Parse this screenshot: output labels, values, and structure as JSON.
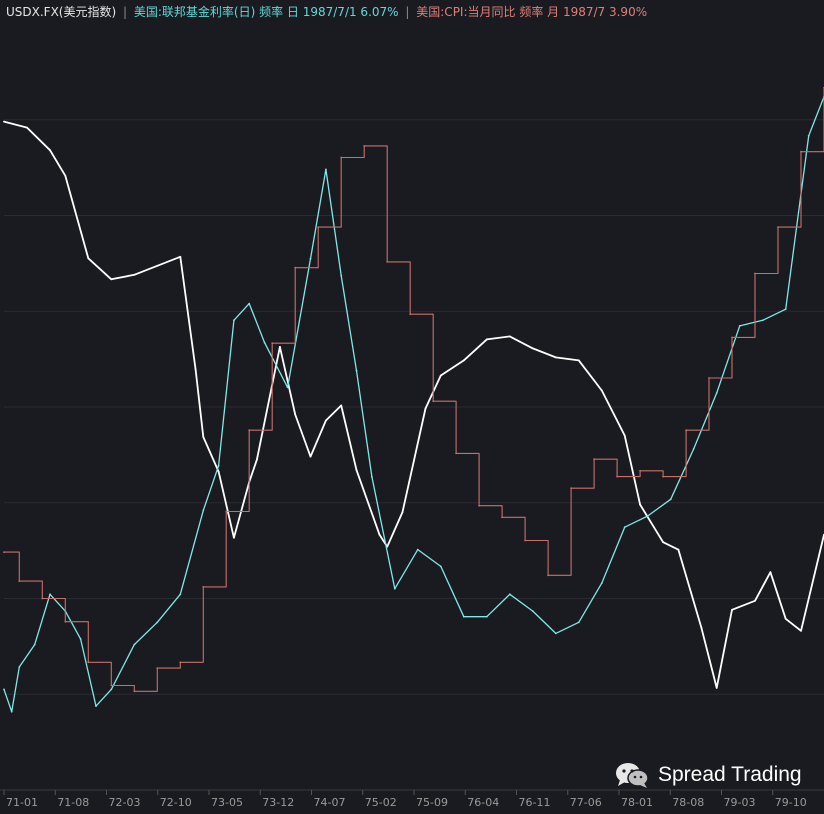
{
  "legend": {
    "usdx": "USDX.FX(美元指数)",
    "sep": "|",
    "fed": "美国:联邦基金利率(日) 频率 日 1987/7/1 6.07%",
    "cpi": "美国:CPI:当月同比 频率 月 1987/7 3.90%"
  },
  "watermark": {
    "text": "Spread Trading",
    "icon": "wechat-icon"
  },
  "colors": {
    "background": "#1a1b20",
    "usdx": "#ffffff",
    "fed": "#7fe8e8",
    "cpi": "#c96f6a",
    "grid": "#2a2b31"
  },
  "chart_data": {
    "type": "line",
    "title": "",
    "xlabel": "",
    "ylabel": "",
    "grid": true,
    "legend_position": "top-left",
    "x_ticks": [
      "71-01",
      "71-08",
      "72-03",
      "72-10",
      "73-05",
      "73-12",
      "74-07",
      "75-02",
      "75-09",
      "76-04",
      "76-11",
      "77-06",
      "78-01",
      "78-08",
      "79-03",
      "79-10"
    ],
    "x_range": [
      "1971-01",
      "1979-12"
    ],
    "series": [
      {
        "name": "USDX.FX(美元指数)",
        "values": [
          {
            "x": "1971-01",
            "y": 120.5
          },
          {
            "x": "1971-04",
            "y": 120.1
          },
          {
            "x": "1971-07",
            "y": 118.6
          },
          {
            "x": "1971-09",
            "y": 116.9
          },
          {
            "x": "1971-12",
            "y": 111.4
          },
          {
            "x": "1972-03",
            "y": 110.0
          },
          {
            "x": "1972-06",
            "y": 110.3
          },
          {
            "x": "1972-09",
            "y": 110.9
          },
          {
            "x": "1972-12",
            "y": 111.5
          },
          {
            "x": "1973-02",
            "y": 104.0
          },
          {
            "x": "1973-03",
            "y": 99.5
          },
          {
            "x": "1973-05",
            "y": 97.2
          },
          {
            "x": "1973-07",
            "y": 92.8
          },
          {
            "x": "1973-09",
            "y": 96.5
          },
          {
            "x": "1973-10",
            "y": 98.0
          },
          {
            "x": "1974-01",
            "y": 105.5
          },
          {
            "x": "1974-03",
            "y": 101.0
          },
          {
            "x": "1974-05",
            "y": 98.2
          },
          {
            "x": "1974-07",
            "y": 100.6
          },
          {
            "x": "1974-09",
            "y": 101.6
          },
          {
            "x": "1974-11",
            "y": 97.3
          },
          {
            "x": "1975-02",
            "y": 93.0
          },
          {
            "x": "1975-03",
            "y": 92.2
          },
          {
            "x": "1975-05",
            "y": 94.5
          },
          {
            "x": "1975-08",
            "y": 101.4
          },
          {
            "x": "1975-10",
            "y": 103.6
          },
          {
            "x": "1976-01",
            "y": 104.6
          },
          {
            "x": "1976-04",
            "y": 106.0
          },
          {
            "x": "1976-07",
            "y": 106.2
          },
          {
            "x": "1976-10",
            "y": 105.4
          },
          {
            "x": "1977-01",
            "y": 104.8
          },
          {
            "x": "1977-04",
            "y": 104.6
          },
          {
            "x": "1977-07",
            "y": 102.6
          },
          {
            "x": "1977-10",
            "y": 99.6
          },
          {
            "x": "1977-12",
            "y": 95.0
          },
          {
            "x": "1978-03",
            "y": 92.5
          },
          {
            "x": "1978-05",
            "y": 92.0
          },
          {
            "x": "1978-08",
            "y": 86.8
          },
          {
            "x": "1978-10",
            "y": 82.8
          },
          {
            "x": "1978-12",
            "y": 88.0
          },
          {
            "x": "1979-03",
            "y": 88.6
          },
          {
            "x": "1979-05",
            "y": 90.5
          },
          {
            "x": "1979-07",
            "y": 87.4
          },
          {
            "x": "1979-09",
            "y": 86.6
          },
          {
            "x": "1979-12",
            "y": 93.0
          }
        ]
      },
      {
        "name": "美国:联邦基金利率(日)",
        "values": [
          {
            "x": "1971-01",
            "y": 3.6
          },
          {
            "x": "1971-02",
            "y": 3.2
          },
          {
            "x": "1971-03",
            "y": 4.0
          },
          {
            "x": "1971-05",
            "y": 4.4
          },
          {
            "x": "1971-07",
            "y": 5.3
          },
          {
            "x": "1971-09",
            "y": 5.0
          },
          {
            "x": "1971-11",
            "y": 4.5
          },
          {
            "x": "1972-01",
            "y": 3.3
          },
          {
            "x": "1972-03",
            "y": 3.6
          },
          {
            "x": "1972-06",
            "y": 4.4
          },
          {
            "x": "1972-09",
            "y": 4.8
          },
          {
            "x": "1972-12",
            "y": 5.3
          },
          {
            "x": "1973-03",
            "y": 6.8
          },
          {
            "x": "1973-05",
            "y": 7.6
          },
          {
            "x": "1973-07",
            "y": 10.2
          },
          {
            "x": "1973-09",
            "y": 10.5
          },
          {
            "x": "1973-11",
            "y": 9.8
          },
          {
            "x": "1974-02",
            "y": 9.0
          },
          {
            "x": "1974-05",
            "y": 11.3
          },
          {
            "x": "1974-07",
            "y": 12.9
          },
          {
            "x": "1974-09",
            "y": 11.0
          },
          {
            "x": "1974-11",
            "y": 9.3
          },
          {
            "x": "1975-01",
            "y": 7.4
          },
          {
            "x": "1975-04",
            "y": 5.4
          },
          {
            "x": "1975-07",
            "y": 6.1
          },
          {
            "x": "1975-10",
            "y": 5.8
          },
          {
            "x": "1976-01",
            "y": 4.9
          },
          {
            "x": "1976-04",
            "y": 4.9
          },
          {
            "x": "1976-07",
            "y": 5.3
          },
          {
            "x": "1976-10",
            "y": 5.0
          },
          {
            "x": "1977-01",
            "y": 4.6
          },
          {
            "x": "1977-04",
            "y": 4.8
          },
          {
            "x": "1977-07",
            "y": 5.5
          },
          {
            "x": "1977-10",
            "y": 6.5
          },
          {
            "x": "1978-01",
            "y": 6.7
          },
          {
            "x": "1978-04",
            "y": 7.0
          },
          {
            "x": "1978-07",
            "y": 7.9
          },
          {
            "x": "1978-10",
            "y": 8.9
          },
          {
            "x": "1979-01",
            "y": 10.1
          },
          {
            "x": "1979-04",
            "y": 10.2
          },
          {
            "x": "1979-07",
            "y": 10.4
          },
          {
            "x": "1979-10",
            "y": 13.5
          },
          {
            "x": "1979-12",
            "y": 14.2
          }
        ]
      },
      {
        "name": "美国:CPI:当月同比",
        "values": [
          {
            "x": "1971-01",
            "y": 5.3
          },
          {
            "x": "1971-03",
            "y": 4.8
          },
          {
            "x": "1971-06",
            "y": 4.5
          },
          {
            "x": "1971-09",
            "y": 4.1
          },
          {
            "x": "1971-12",
            "y": 3.4
          },
          {
            "x": "1972-03",
            "y": 3.0
          },
          {
            "x": "1972-06",
            "y": 2.9
          },
          {
            "x": "1972-09",
            "y": 3.3
          },
          {
            "x": "1972-12",
            "y": 3.4
          },
          {
            "x": "1973-03",
            "y": 4.7
          },
          {
            "x": "1973-06",
            "y": 6.0
          },
          {
            "x": "1973-09",
            "y": 7.4
          },
          {
            "x": "1973-12",
            "y": 8.9
          },
          {
            "x": "1974-03",
            "y": 10.2
          },
          {
            "x": "1974-06",
            "y": 10.9
          },
          {
            "x": "1974-09",
            "y": 12.1
          },
          {
            "x": "1974-12",
            "y": 12.3
          },
          {
            "x": "1975-03",
            "y": 10.3
          },
          {
            "x": "1975-06",
            "y": 9.4
          },
          {
            "x": "1975-09",
            "y": 7.9
          },
          {
            "x": "1975-12",
            "y": 7.0
          },
          {
            "x": "1976-03",
            "y": 6.1
          },
          {
            "x": "1976-06",
            "y": 5.9
          },
          {
            "x": "1976-09",
            "y": 5.5
          },
          {
            "x": "1976-12",
            "y": 4.9
          },
          {
            "x": "1977-03",
            "y": 6.4
          },
          {
            "x": "1977-06",
            "y": 6.9
          },
          {
            "x": "1977-09",
            "y": 6.6
          },
          {
            "x": "1977-12",
            "y": 6.7
          },
          {
            "x": "1978-03",
            "y": 6.6
          },
          {
            "x": "1978-06",
            "y": 7.4
          },
          {
            "x": "1978-09",
            "y": 8.3
          },
          {
            "x": "1978-12",
            "y": 9.0
          },
          {
            "x": "1979-03",
            "y": 10.1
          },
          {
            "x": "1979-06",
            "y": 10.9
          },
          {
            "x": "1979-09",
            "y": 12.2
          },
          {
            "x": "1979-12",
            "y": 13.3
          }
        ]
      }
    ]
  }
}
